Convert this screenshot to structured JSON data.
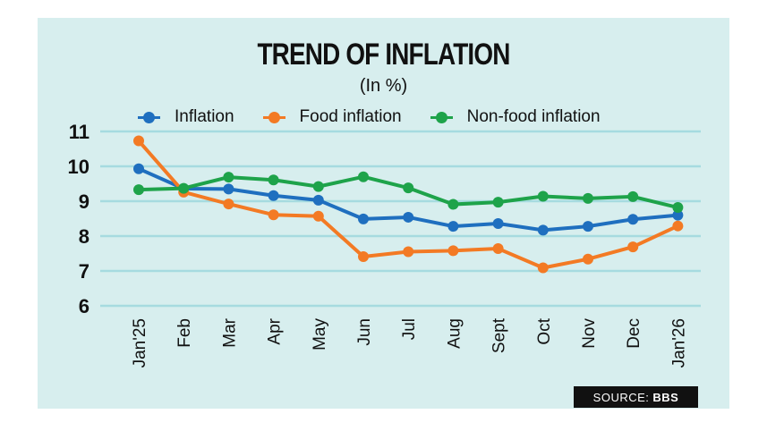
{
  "chart_data": {
    "type": "line",
    "title": "TREND OF INFLATION",
    "subtitle": "(In %)",
    "categories": [
      "Jan'25",
      "Feb",
      "Mar",
      "Apr",
      "May",
      "Jun",
      "Jul",
      "Aug",
      "Sept",
      "Oct",
      "Nov",
      "Dec",
      "Jan'26"
    ],
    "ylim": [
      6,
      11
    ],
    "yticks": [
      6,
      7,
      8,
      9,
      10,
      11
    ],
    "grid": true,
    "legend_position": "top",
    "series": [
      {
        "name": "Inflation",
        "color": "#1f6fbf",
        "values": [
          9.93,
          9.36,
          9.35,
          9.16,
          9.03,
          8.49,
          8.54,
          8.28,
          8.36,
          8.17,
          8.28,
          8.48,
          8.6
        ]
      },
      {
        "name": "Food inflation",
        "color": "#f37a24",
        "values": [
          10.73,
          9.26,
          8.92,
          8.61,
          8.57,
          7.41,
          7.55,
          7.58,
          7.64,
          7.09,
          7.34,
          7.69,
          8.29
        ]
      },
      {
        "name": "Non-food inflation",
        "color": "#1ea34a",
        "values": [
          9.33,
          9.37,
          9.69,
          9.61,
          9.42,
          9.7,
          9.38,
          8.91,
          8.97,
          9.14,
          9.08,
          9.13,
          8.82
        ]
      }
    ]
  },
  "source": {
    "label": "SOURCE:",
    "value": "BBS"
  }
}
